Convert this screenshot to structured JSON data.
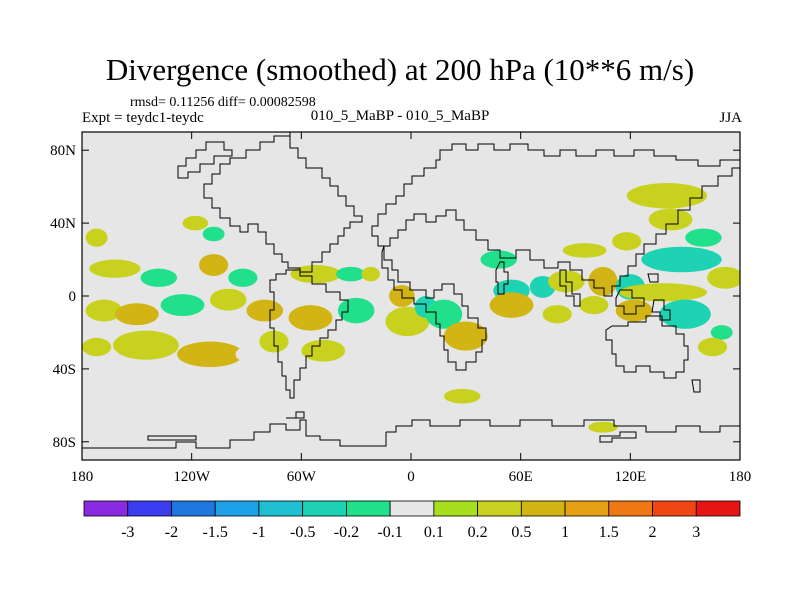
{
  "title": "Divergence (smoothed) at 200 hPa (10**6 m/s)",
  "stats": "rmsd= 0.11256 diff= 0.00082598",
  "expt": "Expt = teydc1-teydc",
  "runs": "010_5_MaBP - 010_5_MaBP",
  "season": "JJA",
  "colors": {
    "background": "#e6e6e6",
    "coast": "#000000"
  },
  "chart_data": {
    "type": "heatmap",
    "title": "Divergence (smoothed) at 200 hPa (10**6 m/s)",
    "xlim": [
      -180,
      180
    ],
    "ylim": [
      -90,
      90
    ],
    "x_ticks": [
      {
        "value": -180,
        "label": "180"
      },
      {
        "value": -120,
        "label": "120W"
      },
      {
        "value": -60,
        "label": "60W"
      },
      {
        "value": 0,
        "label": "0"
      },
      {
        "value": 60,
        "label": "60E"
      },
      {
        "value": 120,
        "label": "120E"
      },
      {
        "value": 180,
        "label": "180"
      }
    ],
    "y_ticks": [
      {
        "value": 80,
        "label": "80N"
      },
      {
        "value": 40,
        "label": "40N"
      },
      {
        "value": 0,
        "label": "0"
      },
      {
        "value": -40,
        "label": "40S"
      },
      {
        "value": -80,
        "label": "80S"
      }
    ],
    "colorbar": {
      "colors": [
        "#8a2be2",
        "#3c3cf0",
        "#1f78e0",
        "#1ea0e6",
        "#1ec0d2",
        "#1ed2b4",
        "#20e08c",
        "#e6e6e6",
        "#a6e01c",
        "#c8d21e",
        "#d2b414",
        "#e6a014",
        "#f07814",
        "#f04614",
        "#e61414"
      ],
      "labels": [
        "-3",
        "-2",
        "-1.5",
        "-1",
        "-0.5",
        "-0.2",
        "-0.1",
        "0.1",
        "0.2",
        "0.5",
        "1",
        "1.5",
        "2",
        "3"
      ]
    },
    "fields": [
      {
        "lon": -172,
        "lat": 32,
        "rx": 6,
        "ry": 5,
        "value": 0.2
      },
      {
        "lon": -174,
        "lat": 22,
        "rx": 5,
        "ry": 4,
        "value": -0.1
      },
      {
        "lon": -145,
        "lat": 40,
        "rx": 5,
        "ry": 4,
        "value": -0.1
      },
      {
        "lon": -118,
        "lat": 40,
        "rx": 7,
        "ry": 4,
        "value": 0.2
      },
      {
        "lon": -108,
        "lat": 34,
        "rx": 6,
        "ry": 4,
        "value": -0.2
      },
      {
        "lon": -162,
        "lat": 15,
        "rx": 14,
        "ry": 5,
        "value": 0.2
      },
      {
        "lon": -138,
        "lat": 10,
        "rx": 10,
        "ry": 5,
        "value": -0.2
      },
      {
        "lon": -108,
        "lat": 17,
        "rx": 8,
        "ry": 6,
        "value": 0.5
      },
      {
        "lon": -92,
        "lat": 10,
        "rx": 8,
        "ry": 5,
        "value": -0.2
      },
      {
        "lon": -75,
        "lat": 12,
        "rx": 6,
        "ry": 4,
        "value": -0.1
      },
      {
        "lon": -52,
        "lat": 12,
        "rx": 14,
        "ry": 5,
        "value": 0.2
      },
      {
        "lon": -33,
        "lat": 12,
        "rx": 8,
        "ry": 4,
        "value": -0.2
      },
      {
        "lon": -22,
        "lat": 12,
        "rx": 5,
        "ry": 4,
        "value": 0.2
      },
      {
        "lon": -168,
        "lat": -8,
        "rx": 10,
        "ry": 6,
        "value": 0.2
      },
      {
        "lon": -150,
        "lat": -10,
        "rx": 12,
        "ry": 6,
        "value": 0.5
      },
      {
        "lon": -125,
        "lat": -5,
        "rx": 12,
        "ry": 6,
        "value": -0.2
      },
      {
        "lon": -100,
        "lat": -2,
        "rx": 10,
        "ry": 6,
        "value": 0.2
      },
      {
        "lon": -80,
        "lat": -8,
        "rx": 10,
        "ry": 6,
        "value": 0.5
      },
      {
        "lon": -55,
        "lat": -12,
        "rx": 12,
        "ry": 7,
        "value": 0.5
      },
      {
        "lon": -30,
        "lat": -8,
        "rx": 10,
        "ry": 7,
        "value": -0.2
      },
      {
        "lon": -172,
        "lat": -28,
        "rx": 8,
        "ry": 5,
        "value": 0.2
      },
      {
        "lon": -145,
        "lat": -27,
        "rx": 18,
        "ry": 8,
        "value": 0.2
      },
      {
        "lon": -110,
        "lat": -32,
        "rx": 18,
        "ry": 7,
        "value": 0.5
      },
      {
        "lon": -75,
        "lat": -25,
        "rx": 8,
        "ry": 6,
        "value": 0.2
      },
      {
        "lon": -48,
        "lat": -30,
        "rx": 12,
        "ry": 6,
        "value": 0.2
      },
      {
        "lon": -90,
        "lat": -32,
        "rx": 6,
        "ry": 4,
        "value": -0.1
      },
      {
        "lon": -5,
        "lat": 0,
        "rx": 7,
        "ry": 6,
        "value": 0.5
      },
      {
        "lon": -2,
        "lat": -14,
        "rx": 12,
        "ry": 8,
        "value": 0.2
      },
      {
        "lon": 8,
        "lat": -6,
        "rx": 6,
        "ry": 6,
        "value": -0.5
      },
      {
        "lon": 18,
        "lat": -10,
        "rx": 10,
        "ry": 8,
        "value": -0.2
      },
      {
        "lon": 30,
        "lat": -22,
        "rx": 12,
        "ry": 8,
        "value": 0.5
      },
      {
        "lon": 28,
        "lat": -55,
        "rx": 10,
        "ry": 4,
        "value": 0.2
      },
      {
        "lon": 48,
        "lat": 20,
        "rx": 10,
        "ry": 5,
        "value": -0.2
      },
      {
        "lon": 55,
        "lat": 3,
        "rx": 10,
        "ry": 6,
        "value": -0.5
      },
      {
        "lon": 55,
        "lat": -5,
        "rx": 12,
        "ry": 7,
        "value": 0.5
      },
      {
        "lon": 72,
        "lat": 5,
        "rx": 7,
        "ry": 6,
        "value": -0.5
      },
      {
        "lon": 85,
        "lat": 8,
        "rx": 10,
        "ry": 6,
        "value": 0.2
      },
      {
        "lon": 80,
        "lat": -10,
        "rx": 8,
        "ry": 5,
        "value": 0.2
      },
      {
        "lon": 70,
        "lat": -25,
        "rx": 6,
        "ry": 4,
        "value": -0.1
      },
      {
        "lon": 95,
        "lat": 25,
        "rx": 12,
        "ry": 4,
        "value": 0.2
      },
      {
        "lon": 118,
        "lat": 30,
        "rx": 8,
        "ry": 5,
        "value": 0.2
      },
      {
        "lon": 105,
        "lat": 8,
        "rx": 8,
        "ry": 8,
        "value": 0.5
      },
      {
        "lon": 120,
        "lat": 5,
        "rx": 8,
        "ry": 7,
        "value": -0.5
      },
      {
        "lon": 100,
        "lat": -5,
        "rx": 8,
        "ry": 5,
        "value": 0.2
      },
      {
        "lon": 140,
        "lat": 55,
        "rx": 22,
        "ry": 7,
        "value": 0.2
      },
      {
        "lon": 142,
        "lat": 42,
        "rx": 12,
        "ry": 6,
        "value": 0.2
      },
      {
        "lon": 160,
        "lat": 32,
        "rx": 10,
        "ry": 5,
        "value": -0.2
      },
      {
        "lon": 148,
        "lat": 20,
        "rx": 22,
        "ry": 7,
        "value": -0.5
      },
      {
        "lon": 172,
        "lat": 10,
        "rx": 10,
        "ry": 6,
        "value": 0.2
      },
      {
        "lon": 138,
        "lat": 2,
        "rx": 24,
        "ry": 5,
        "value": 0.2
      },
      {
        "lon": 150,
        "lat": -10,
        "rx": 14,
        "ry": 8,
        "value": -0.5
      },
      {
        "lon": 122,
        "lat": -8,
        "rx": 10,
        "ry": 6,
        "value": 0.5
      },
      {
        "lon": 170,
        "lat": -20,
        "rx": 6,
        "ry": 4,
        "value": -0.2
      },
      {
        "lon": 165,
        "lat": -28,
        "rx": 8,
        "ry": 5,
        "value": 0.2
      },
      {
        "lon": 118,
        "lat": -68,
        "rx": 10,
        "ry": 4,
        "value": -0.1
      },
      {
        "lon": 105,
        "lat": -72,
        "rx": 8,
        "ry": 3,
        "value": 0.2
      }
    ]
  }
}
